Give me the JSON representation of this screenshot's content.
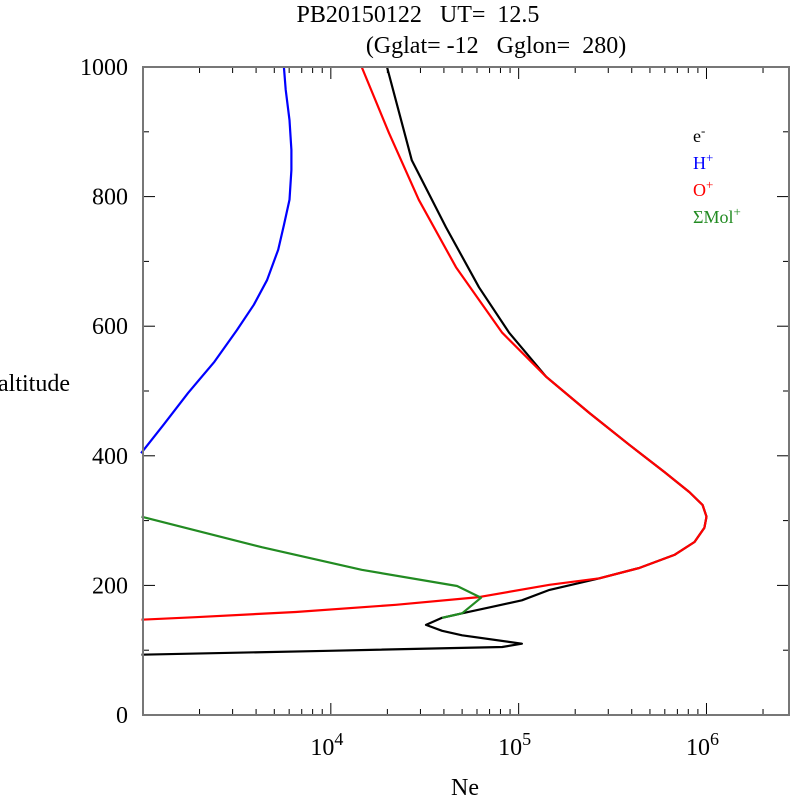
{
  "chart_data": {
    "type": "line",
    "title": "PB20150122   UT=  12.5",
    "subtitle": "(Gglat= -12   Gglon=  280)",
    "xlabel": "Ne",
    "ylabel": "altitude",
    "xscale": "log",
    "xlim": [
      1000,
      2750000
    ],
    "ylim": [
      0,
      1000
    ],
    "x_ticks": [
      {
        "value": 10000,
        "base": "10",
        "exp": "4"
      },
      {
        "value": 100000,
        "base": "10",
        "exp": "5"
      },
      {
        "value": 1000000,
        "base": "10",
        "exp": "6"
      }
    ],
    "y_ticks": [
      {
        "value": 0,
        "label": "0"
      },
      {
        "value": 200,
        "label": "200"
      },
      {
        "value": 400,
        "label": "400"
      },
      {
        "value": 600,
        "label": "600"
      },
      {
        "value": 800,
        "label": "800"
      },
      {
        "value": 1000,
        "label": "1000"
      }
    ],
    "grid": false,
    "legend_position": "top-right",
    "series": [
      {
        "name": "e-",
        "label_base": "e",
        "label_sup": "-",
        "color": "#000000",
        "points": [
          [
            19900,
            1000
          ],
          [
            27000,
            856
          ],
          [
            41000,
            753
          ],
          [
            61500,
            660
          ],
          [
            89000,
            590
          ],
          [
            140000,
            522
          ],
          [
            238000,
            466
          ],
          [
            388000,
            417
          ],
          [
            597000,
            375
          ],
          [
            811000,
            344
          ],
          [
            953000,
            324
          ],
          [
            1000000,
            306
          ],
          [
            975000,
            289
          ],
          [
            863000,
            267
          ],
          [
            675000,
            247
          ],
          [
            440000,
            227
          ],
          [
            269000,
            211
          ],
          [
            146000,
            193
          ],
          [
            104000,
            177
          ],
          [
            72300,
            167
          ],
          [
            50000,
            157
          ],
          [
            39100,
            150
          ],
          [
            32100,
            139
          ],
          [
            39100,
            130
          ],
          [
            50000,
            123
          ],
          [
            104000,
            110
          ],
          [
            81700,
            105
          ],
          [
            9760,
            99
          ],
          [
            982,
            93
          ]
        ]
      },
      {
        "name": "H+",
        "label_base": "H",
        "label_sup": "+",
        "color": "#0000ff",
        "points": [
          [
            977,
            404
          ],
          [
            1288,
            448
          ],
          [
            1738,
            497
          ],
          [
            2399,
            545
          ],
          [
            3162,
            594
          ],
          [
            3890,
            633
          ],
          [
            4571,
            671
          ],
          [
            5248,
            718
          ],
          [
            5623,
            756
          ],
          [
            6026,
            795
          ],
          [
            6166,
            841
          ],
          [
            6166,
            872
          ],
          [
            6026,
            918
          ],
          [
            5754,
            965
          ],
          [
            5623,
            1000
          ]
        ]
      },
      {
        "name": "O+",
        "label_base": "O",
        "label_sup": "+",
        "color": "#ff0000",
        "points": [
          [
            14600,
            1000
          ],
          [
            20400,
            898
          ],
          [
            29400,
            795
          ],
          [
            46400,
            691
          ],
          [
            81700,
            590
          ],
          [
            140000,
            522
          ],
          [
            238000,
            466
          ],
          [
            388000,
            417
          ],
          [
            597000,
            375
          ],
          [
            811000,
            344
          ],
          [
            953000,
            324
          ],
          [
            1000000,
            306
          ],
          [
            975000,
            289
          ],
          [
            863000,
            267
          ],
          [
            675000,
            247
          ],
          [
            440000,
            227
          ],
          [
            269000,
            211
          ],
          [
            146000,
            201
          ],
          [
            61500,
            182
          ],
          [
            22200,
            170
          ],
          [
            6500,
            159
          ],
          [
            1900,
            151
          ],
          [
            982,
            147
          ]
        ]
      },
      {
        "name": "ΣMol+",
        "label_base": "ΣMol",
        "label_sup": "+",
        "color": "#228b22",
        "points": [
          [
            982,
            306
          ],
          [
            4290,
            259
          ],
          [
            14600,
            224
          ],
          [
            47000,
            199
          ],
          [
            63100,
            181
          ],
          [
            50000,
            157
          ],
          [
            39100,
            150
          ]
        ]
      }
    ]
  }
}
